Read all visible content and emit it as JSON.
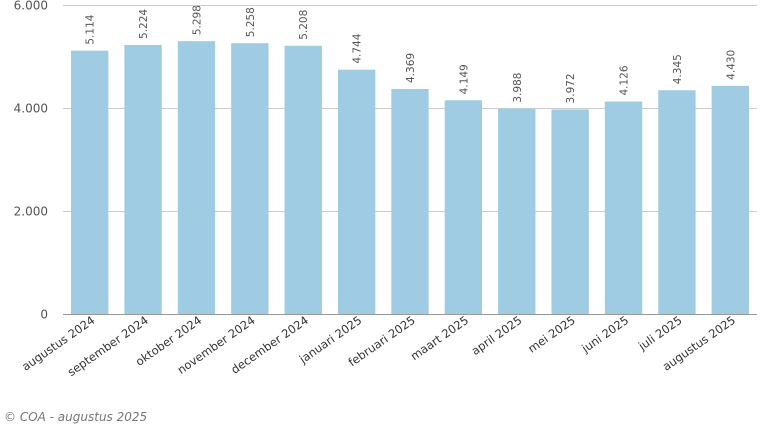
{
  "chart_data": {
    "type": "bar",
    "categories": [
      "augustus 2024",
      "september 2024",
      "oktober 2024",
      "november 2024",
      "december 2024",
      "januari 2025",
      "februari 2025",
      "maart 2025",
      "april 2025",
      "mei 2025",
      "juni 2025",
      "juli 2025",
      "augustus 2025"
    ],
    "values": [
      5114,
      5224,
      5298,
      5258,
      5208,
      4744,
      4369,
      4149,
      3988,
      3972,
      4126,
      4345,
      4430
    ],
    "data_labels": [
      "5.114",
      "5.224",
      "5.298",
      "5.258",
      "5.208",
      "4.744",
      "4.369",
      "4.149",
      "3.988",
      "3.972",
      "4.126",
      "4.345",
      "4.430"
    ],
    "yticks": [
      0,
      2000,
      4000,
      6000
    ],
    "ytick_labels": [
      "0",
      "2.000",
      "4.000",
      "6.000"
    ],
    "ylim": [
      0,
      6000
    ],
    "grid": true,
    "legend": "none",
    "bar_color": "#9fcce3",
    "grid_color": "#cccccc"
  },
  "footer": {
    "credit": "© COA - augustus 2025"
  }
}
